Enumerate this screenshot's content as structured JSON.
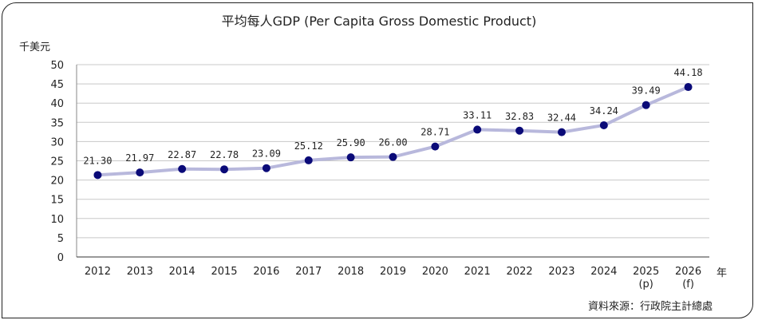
{
  "chart_data": {
    "type": "line",
    "title": "平均每人GDP (Per Capita Gross Domestic Product)",
    "ylabel": "千美元",
    "xlabel": "年",
    "categories": [
      "2012",
      "2013",
      "2014",
      "2015",
      "2016",
      "2017",
      "2018",
      "2019",
      "2020",
      "2021",
      "2022",
      "2023",
      "2024",
      "2025\n(p)",
      "2026\n(f)"
    ],
    "values": [
      21.3,
      21.97,
      22.87,
      22.78,
      23.09,
      25.12,
      25.9,
      26.0,
      28.71,
      33.11,
      32.83,
      32.44,
      34.24,
      39.49,
      44.18
    ],
    "data_labels": [
      "21.30",
      "21.97",
      "22.87",
      "22.78",
      "23.09",
      "25.12",
      "25.90",
      "26.00",
      "28.71",
      "33.11",
      "32.83",
      "32.44",
      "34.24",
      "39.49",
      "44.18"
    ],
    "ylim": [
      0,
      50
    ],
    "yticks": [
      0,
      5,
      10,
      15,
      20,
      25,
      30,
      35,
      40,
      45,
      50
    ],
    "grid": true,
    "legend": "none",
    "source": "資料來源：行政院主計總處",
    "colors": {
      "line": "#b8b8dc",
      "marker": "#0a0a78",
      "grid": "#c8c8c8"
    }
  }
}
